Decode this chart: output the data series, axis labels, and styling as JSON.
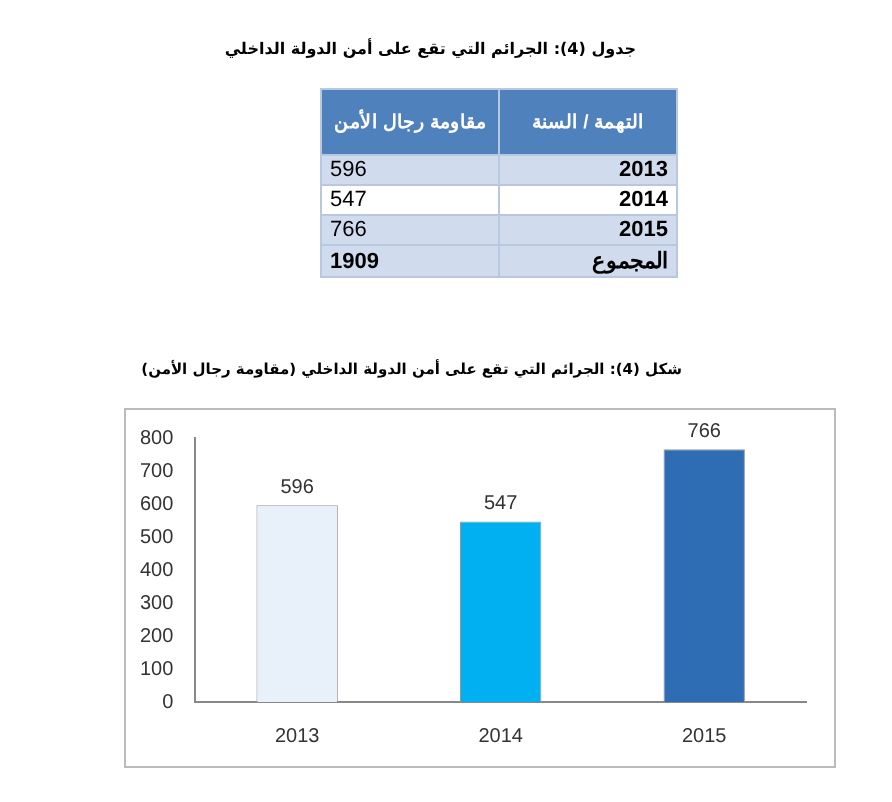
{
  "chart_data": [
    {
      "type": "other",
      "title": "جدول (4): الجرائم التي تقع على أمن الدولة الداخلي",
      "xlabel": "التهمة / السنة",
      "ylabel": "مقاومة رجال الأمن",
      "categories": [
        "2013",
        "2014",
        "2015"
      ],
      "values": [
        596,
        547,
        766
      ],
      "annotations": [
        "المجموع",
        "1909"
      ],
      "data_labels": true
    },
    {
      "type": "bar",
      "title": "شكل (4): الجرائم التي تقع على أمن الدولة الداخلي (مقاومة رجال الأمن)",
      "categories": [
        "2013",
        "2014",
        "2015"
      ],
      "values": [
        596,
        547,
        766
      ],
      "colors": [
        "#e8f0fa",
        "#00b0f0",
        "#2e6db4"
      ],
      "ylim": [
        0,
        800
      ],
      "yticks": [
        0,
        100,
        200,
        300,
        400,
        500,
        600,
        700,
        800
      ],
      "data_labels": true,
      "grid": false
    }
  ]
}
